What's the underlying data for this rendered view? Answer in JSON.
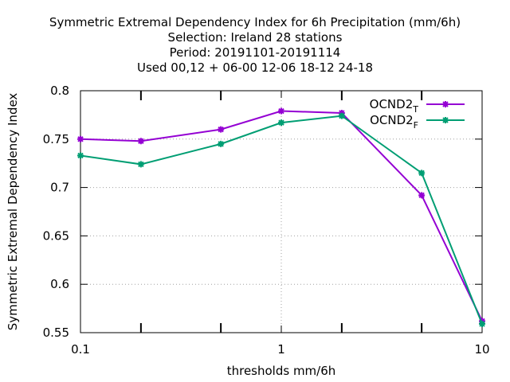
{
  "chart_data": {
    "type": "line",
    "title_lines": [
      "Symmetric Extremal Dependency Index  for 6h Precipitation (mm/6h)",
      "Selection: Ireland      28 stations",
      "Period: 20191101-20191114",
      "Used  00,12  + 06-00 12-06 18-12 24-18"
    ],
    "xlabel": "thresholds mm/6h",
    "ylabel": "Symmetric Extremal Dependency Index",
    "x_scale": "log",
    "xlim": [
      0.1,
      10
    ],
    "ylim": [
      0.55,
      0.8
    ],
    "x_tick_labels": [
      "0.1",
      "1",
      "10"
    ],
    "y_tick_labels": [
      "0.55",
      "0.6",
      "0.65",
      "0.7",
      "0.75",
      "0.8"
    ],
    "grid": true,
    "legend_position": "top-right",
    "x": [
      0.1,
      0.2,
      0.5,
      1,
      2,
      5,
      10
    ],
    "series": [
      {
        "name": "OCND2",
        "subscript": "T",
        "color": "#9400d3",
        "values": [
          0.75,
          0.748,
          0.76,
          0.779,
          0.777,
          0.692,
          0.562
        ]
      },
      {
        "name": "OCND2",
        "subscript": "F",
        "color": "#009e73",
        "values": [
          0.733,
          0.724,
          0.745,
          0.767,
          0.774,
          0.715,
          0.559
        ]
      }
    ]
  }
}
